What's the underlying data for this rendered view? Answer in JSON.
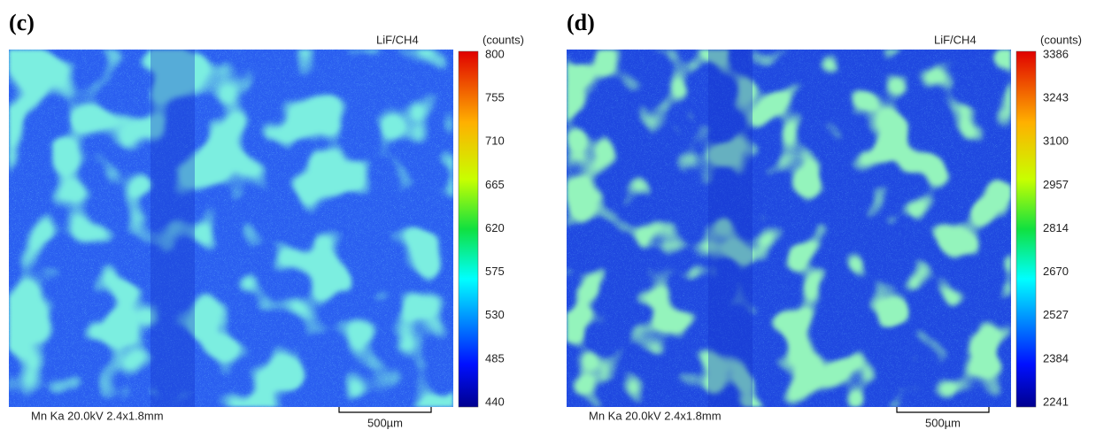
{
  "panels": [
    {
      "label": "(c)",
      "filter": "LiF/CH4",
      "unit": "(counts)",
      "ticks": [
        800,
        755,
        710,
        665,
        620,
        575,
        530,
        485,
        440
      ],
      "info": "Mn Ka 20.0kV 2.4x1.8mm",
      "scale_bar": "500µm"
    },
    {
      "label": "(d)",
      "filter": "LiF/CH4",
      "unit": "(counts)",
      "ticks": [
        3386,
        3243,
        3100,
        2957,
        2814,
        2670,
        2527,
        2384,
        2241
      ],
      "info": "Mn Ka 20.0kV 2.4x1.8mm",
      "scale_bar": "500µm"
    }
  ]
}
